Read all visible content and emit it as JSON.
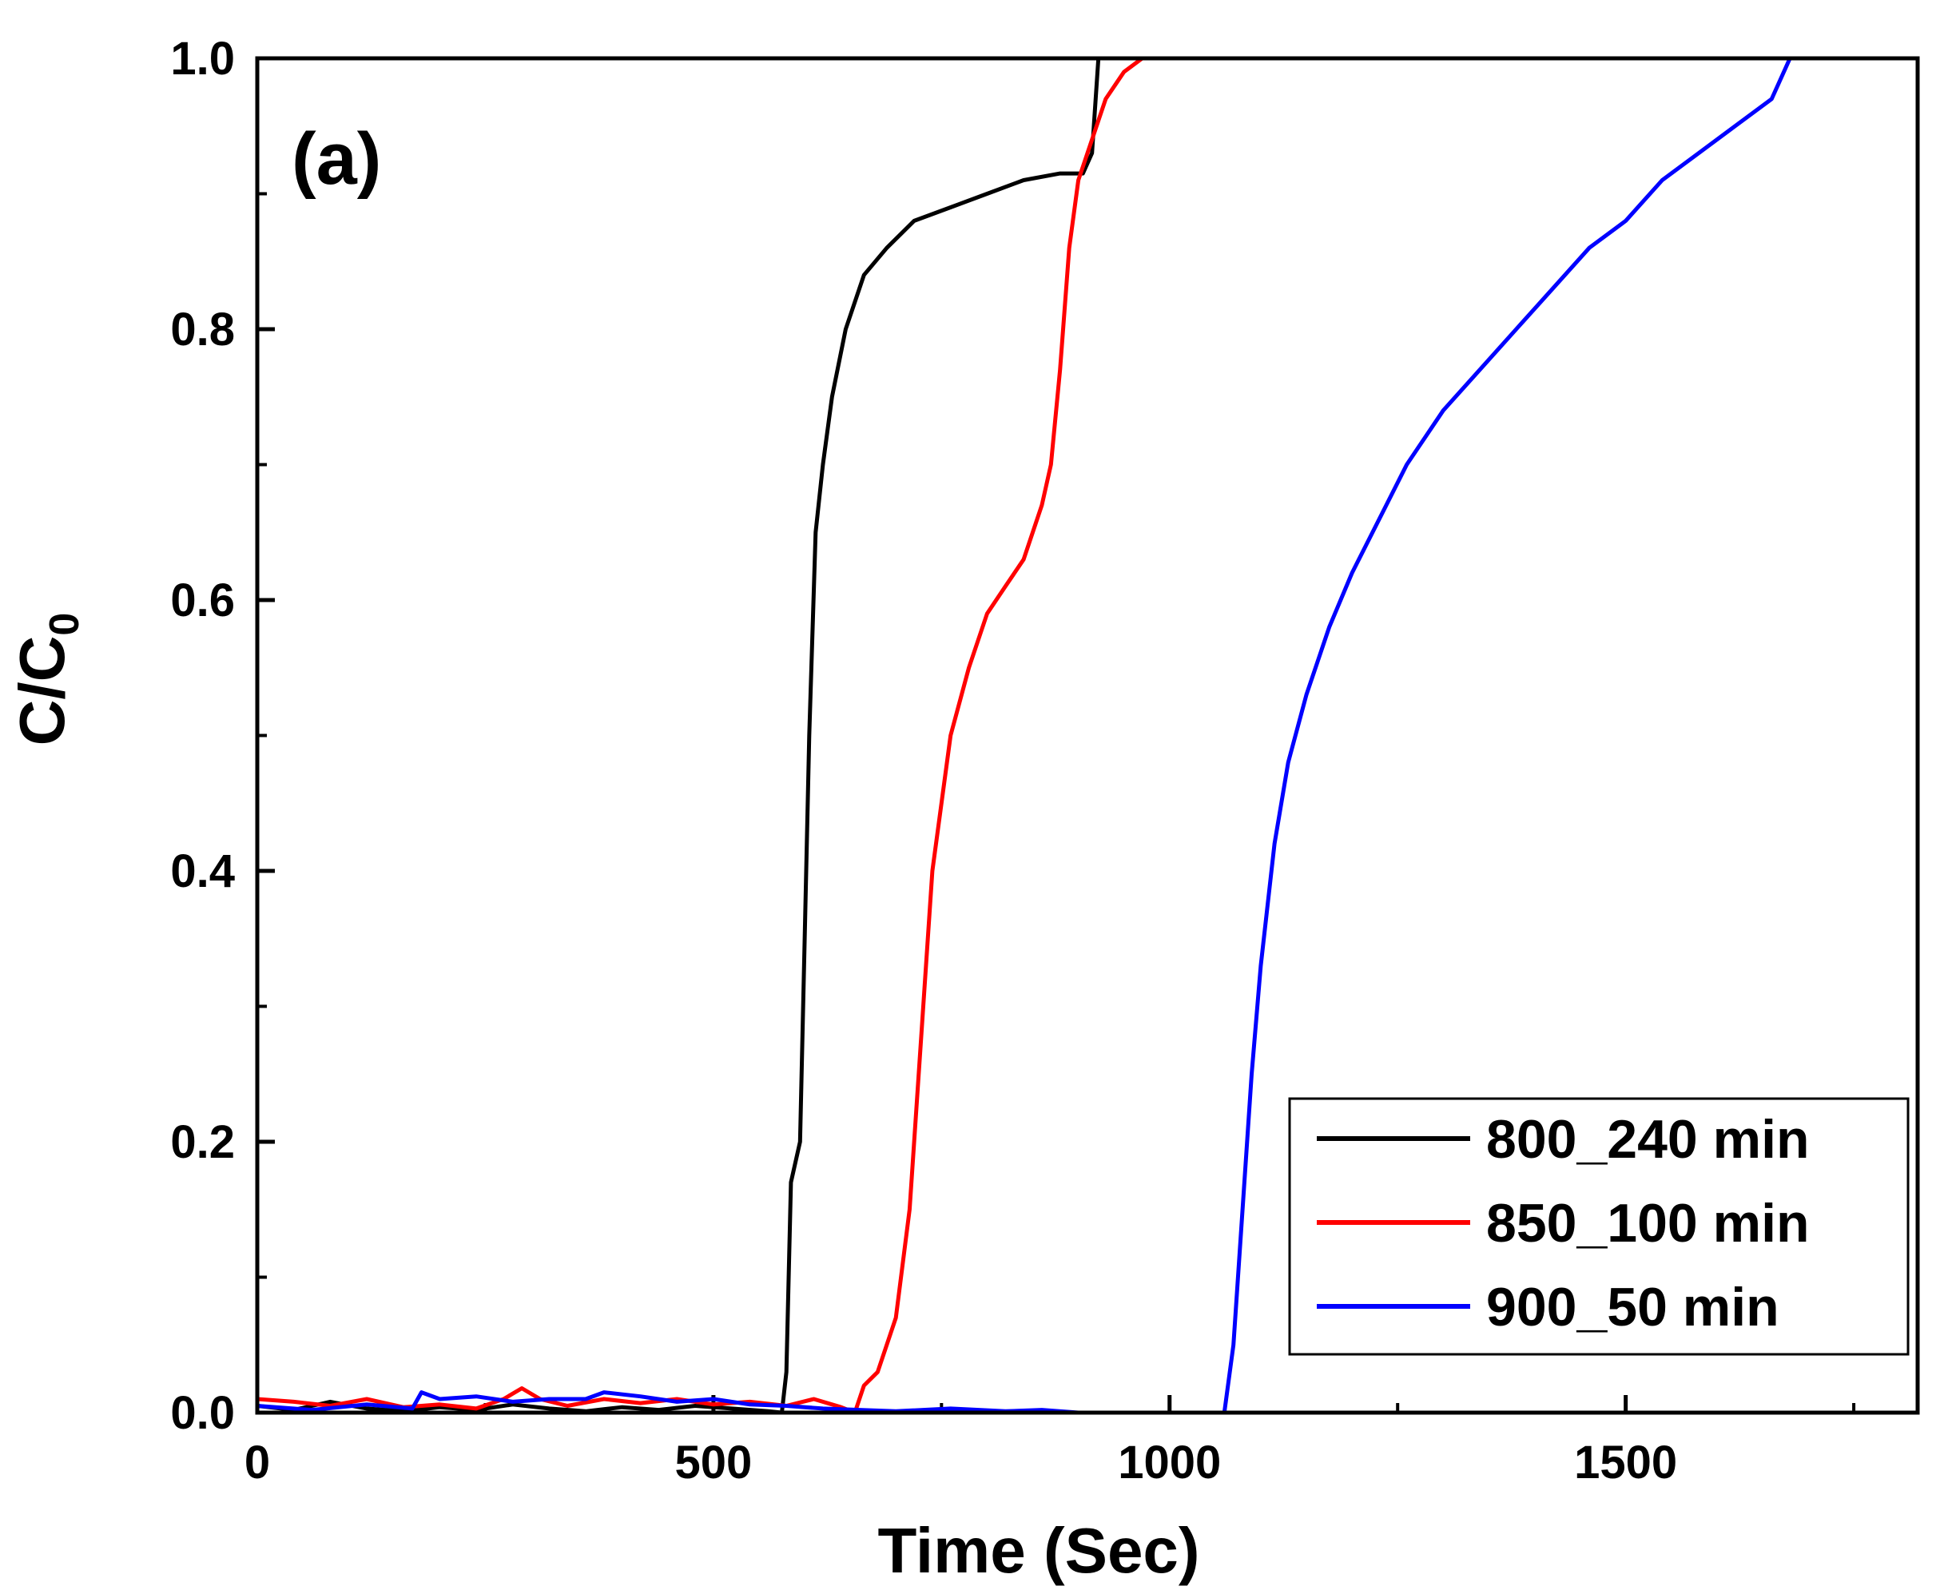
{
  "chart_data": {
    "type": "line",
    "panel_label": "(a)",
    "xlabel": "Time (Sec)",
    "ylabel_main": "C/C",
    "ylabel_sub": "0",
    "xlim": [
      0,
      1820
    ],
    "ylim": [
      0,
      1.0
    ],
    "x_ticks": [
      {
        "value": 0,
        "label": "0"
      },
      {
        "value": 500,
        "label": "500"
      },
      {
        "value": 1000,
        "label": "1000"
      },
      {
        "value": 1500,
        "label": "1500"
      }
    ],
    "x_minor_ticks": [
      250,
      750,
      1250,
      1750
    ],
    "y_ticks": [
      {
        "value": 0.0,
        "label": "0.0"
      },
      {
        "value": 0.2,
        "label": "0.2"
      },
      {
        "value": 0.4,
        "label": "0.4"
      },
      {
        "value": 0.6,
        "label": "0.6"
      },
      {
        "value": 0.8,
        "label": "0.8"
      },
      {
        "value": 1.0,
        "label": "1.0"
      }
    ],
    "y_minor_ticks": [
      0.1,
      0.3,
      0.5,
      0.7,
      0.9
    ],
    "legend_position": "bottom-right",
    "series": [
      {
        "name": "800_240 min",
        "color": "#000000",
        "points": [
          [
            0,
            0.005
          ],
          [
            40,
            0.002
          ],
          [
            80,
            0.008
          ],
          [
            120,
            0.003
          ],
          [
            160,
            0.001
          ],
          [
            200,
            0.004
          ],
          [
            240,
            0.002
          ],
          [
            280,
            0.006
          ],
          [
            320,
            0.003
          ],
          [
            360,
            0.001
          ],
          [
            400,
            0.004
          ],
          [
            440,
            0.002
          ],
          [
            480,
            0.005
          ],
          [
            520,
            0.003
          ],
          [
            560,
            0.001
          ],
          [
            575,
            0.0
          ],
          [
            580,
            0.03
          ],
          [
            585,
            0.17
          ],
          [
            595,
            0.2
          ],
          [
            600,
            0.35
          ],
          [
            605,
            0.5
          ],
          [
            612,
            0.65
          ],
          [
            620,
            0.7
          ],
          [
            630,
            0.75
          ],
          [
            645,
            0.8
          ],
          [
            665,
            0.84
          ],
          [
            690,
            0.86
          ],
          [
            720,
            0.88
          ],
          [
            760,
            0.89
          ],
          [
            800,
            0.9
          ],
          [
            840,
            0.91
          ],
          [
            880,
            0.915
          ],
          [
            905,
            0.915
          ],
          [
            915,
            0.93
          ],
          [
            922,
            1.0
          ]
        ]
      },
      {
        "name": "850_100 min",
        "color": "#ff0000",
        "points": [
          [
            0,
            0.01
          ],
          [
            40,
            0.008
          ],
          [
            80,
            0.005
          ],
          [
            120,
            0.01
          ],
          [
            160,
            0.004
          ],
          [
            200,
            0.006
          ],
          [
            240,
            0.003
          ],
          [
            270,
            0.01
          ],
          [
            290,
            0.018
          ],
          [
            310,
            0.01
          ],
          [
            340,
            0.005
          ],
          [
            380,
            0.01
          ],
          [
            420,
            0.007
          ],
          [
            460,
            0.01
          ],
          [
            500,
            0.006
          ],
          [
            540,
            0.008
          ],
          [
            580,
            0.005
          ],
          [
            610,
            0.01
          ],
          [
            640,
            0.004
          ],
          [
            655,
            0.0
          ],
          [
            665,
            0.02
          ],
          [
            680,
            0.03
          ],
          [
            700,
            0.07
          ],
          [
            715,
            0.15
          ],
          [
            725,
            0.25
          ],
          [
            740,
            0.4
          ],
          [
            760,
            0.5
          ],
          [
            780,
            0.55
          ],
          [
            800,
            0.59
          ],
          [
            820,
            0.61
          ],
          [
            840,
            0.63
          ],
          [
            860,
            0.67
          ],
          [
            870,
            0.7
          ],
          [
            880,
            0.77
          ],
          [
            890,
            0.86
          ],
          [
            900,
            0.91
          ],
          [
            915,
            0.94
          ],
          [
            930,
            0.97
          ],
          [
            950,
            0.99
          ],
          [
            970,
            1.0
          ]
        ]
      },
      {
        "name": "900_50 min",
        "color": "#0000ff",
        "points": [
          [
            0,
            0.005
          ],
          [
            60,
            0.002
          ],
          [
            120,
            0.006
          ],
          [
            170,
            0.003
          ],
          [
            180,
            0.015
          ],
          [
            200,
            0.01
          ],
          [
            240,
            0.012
          ],
          [
            280,
            0.008
          ],
          [
            320,
            0.01
          ],
          [
            360,
            0.01
          ],
          [
            380,
            0.015
          ],
          [
            420,
            0.012
          ],
          [
            460,
            0.008
          ],
          [
            500,
            0.01
          ],
          [
            540,
            0.006
          ],
          [
            580,
            0.005
          ],
          [
            620,
            0.003
          ],
          [
            660,
            0.002
          ],
          [
            700,
            0.001
          ],
          [
            760,
            0.003
          ],
          [
            820,
            0.001
          ],
          [
            860,
            0.002
          ],
          [
            900,
            0.0
          ],
          [
            1000,
            0.0
          ],
          [
            1060,
            0.0
          ],
          [
            1070,
            0.05
          ],
          [
            1080,
            0.15
          ],
          [
            1090,
            0.25
          ],
          [
            1100,
            0.33
          ],
          [
            1115,
            0.42
          ],
          [
            1130,
            0.48
          ],
          [
            1150,
            0.53
          ],
          [
            1175,
            0.58
          ],
          [
            1200,
            0.62
          ],
          [
            1230,
            0.66
          ],
          [
            1260,
            0.7
          ],
          [
            1300,
            0.74
          ],
          [
            1340,
            0.77
          ],
          [
            1380,
            0.8
          ],
          [
            1420,
            0.83
          ],
          [
            1460,
            0.86
          ],
          [
            1500,
            0.88
          ],
          [
            1540,
            0.91
          ],
          [
            1580,
            0.93
          ],
          [
            1620,
            0.95
          ],
          [
            1660,
            0.97
          ],
          [
            1680,
            1.0
          ]
        ]
      }
    ]
  }
}
